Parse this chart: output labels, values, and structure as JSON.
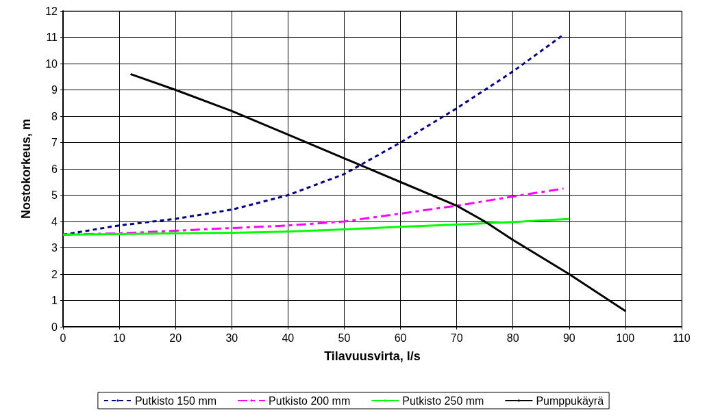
{
  "chart_data": {
    "type": "line",
    "xlabel": "Tilavuusvirta, l/s",
    "ylabel": "Nostokorkeus, m",
    "xlim": [
      0,
      110
    ],
    "xticks": [
      0,
      10,
      20,
      30,
      40,
      50,
      60,
      70,
      80,
      90,
      100,
      110
    ],
    "ylim": [
      0,
      12
    ],
    "yticks": [
      0,
      1,
      2,
      3,
      4,
      5,
      6,
      7,
      8,
      9,
      10,
      11,
      12
    ],
    "grid": true,
    "legend": "bottom",
    "marker": "none",
    "series": [
      {
        "name": "Putkisto 150 mm",
        "color": "#000080",
        "line_style": "dotted",
        "x": [
          0,
          10,
          20,
          30,
          40,
          50,
          60,
          70,
          80,
          89
        ],
        "values": [
          3.5,
          3.85,
          4.1,
          4.45,
          5.0,
          5.8,
          7.0,
          8.3,
          9.7,
          11.1
        ]
      },
      {
        "name": "Putkisto 200 mm",
        "color": "#ff00ff",
        "line_style": "dashed",
        "x": [
          0,
          10,
          20,
          30,
          40,
          50,
          60,
          70,
          80,
          89
        ],
        "values": [
          3.5,
          3.55,
          3.65,
          3.75,
          3.85,
          4.0,
          4.3,
          4.6,
          4.95,
          5.25
        ]
      },
      {
        "name": "Putkisto 250 mm",
        "color": "#00ff00",
        "line_style": "solid",
        "x": [
          0,
          10,
          20,
          30,
          40,
          50,
          60,
          70,
          80,
          90
        ],
        "values": [
          3.5,
          3.52,
          3.55,
          3.57,
          3.62,
          3.7,
          3.8,
          3.88,
          3.98,
          4.1
        ]
      },
      {
        "name": "Pumppukäyrä",
        "color": "#000000",
        "line_style": "solid",
        "x": [
          12,
          20,
          30,
          40,
          50,
          60,
          70,
          75,
          80,
          90,
          100
        ],
        "values": [
          9.6,
          9.0,
          8.2,
          7.3,
          6.4,
          5.5,
          4.6,
          4.0,
          3.3,
          2.0,
          0.6
        ]
      }
    ]
  }
}
